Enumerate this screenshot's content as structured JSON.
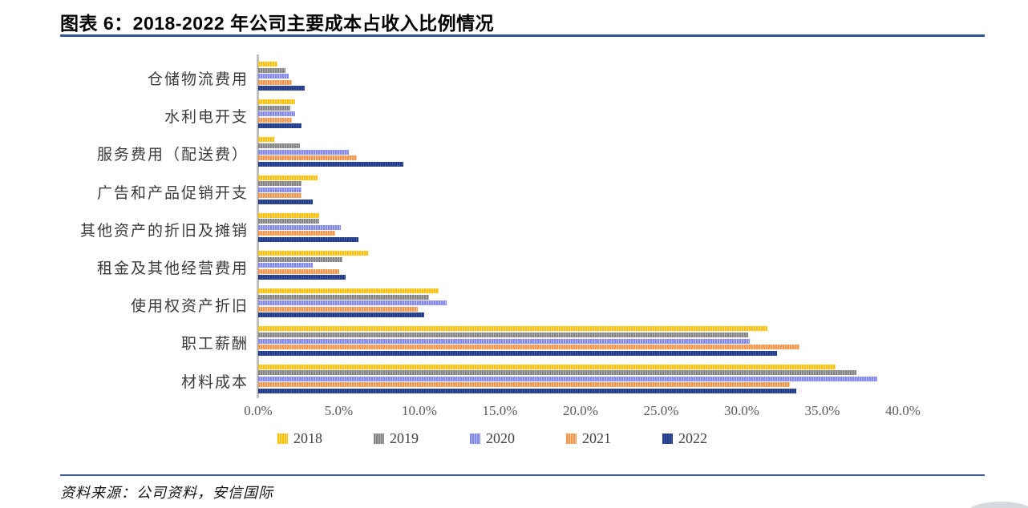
{
  "header": {
    "title": "图表 6：2018-2022 年公司主要成本占收入比例情况"
  },
  "footer": {
    "source": "资料来源：公司资料，安信国际"
  },
  "chart_data": {
    "type": "bar",
    "orientation": "horizontal",
    "title": "图表 6：2018-2022 年公司主要成本占收入比例情况",
    "unit": "percent of revenue",
    "categories": [
      "仓储物流费用",
      "水利电开支",
      "服务费用（配送费）",
      "广告和产品促销开支",
      "其他资产的折旧及摊销",
      "租金及其他经营费用",
      "使用权资产折旧",
      "职工薪酬",
      "材料成本"
    ],
    "series": [
      {
        "name": "2018",
        "color": "#FFC000",
        "color_light": "#FFDF85",
        "values": [
          1.2,
          2.3,
          1.0,
          3.7,
          3.8,
          6.8,
          11.2,
          31.6,
          35.8
        ]
      },
      {
        "name": "2019",
        "color": "#858585",
        "color_light": "#B0B0B0",
        "values": [
          1.7,
          2.0,
          2.6,
          2.7,
          3.8,
          5.2,
          10.6,
          30.4,
          37.1
        ]
      },
      {
        "name": "2020",
        "color": "#8289E8",
        "color_light": "#B5BAF3",
        "values": [
          1.9,
          2.3,
          5.6,
          2.7,
          5.1,
          3.4,
          11.7,
          30.5,
          38.4
        ]
      },
      {
        "name": "2021",
        "color": "#F2954A",
        "color_light": "#F9C99E",
        "values": [
          2.1,
          2.1,
          6.1,
          2.7,
          4.8,
          5.0,
          9.9,
          33.6,
          33.0
        ]
      },
      {
        "name": "2022",
        "color": "#1E3C87",
        "color_light": "#44569C",
        "values": [
          2.9,
          2.7,
          9.0,
          3.4,
          6.2,
          5.4,
          10.3,
          32.2,
          33.4
        ]
      }
    ],
    "x_ticks": [
      "0.0%",
      "5.0%",
      "10.0%",
      "15.0%",
      "20.0%",
      "25.0%",
      "30.0%",
      "35.0%",
      "40.0%"
    ],
    "xlim": [
      0,
      40
    ],
    "grid": false,
    "legend": [
      "2018",
      "2019",
      "2020",
      "2021",
      "2022"
    ],
    "legend_position": "bottom"
  }
}
